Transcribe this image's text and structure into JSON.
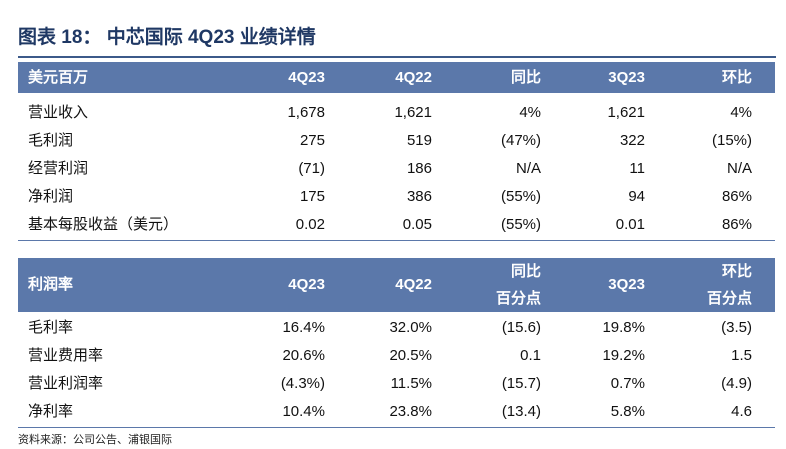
{
  "title": "图表 18： 中芯国际 4Q23 业绩详情",
  "tables": [
    {
      "header": [
        "美元百万",
        "4Q23",
        "4Q22",
        "同比",
        "3Q23",
        "环比"
      ],
      "rows": [
        [
          "营业收入",
          "1,678",
          "1,621",
          "4%",
          "1,621",
          "4%"
        ],
        [
          "毛利润",
          "275",
          "519",
          "(47%)",
          "322",
          "(15%)"
        ],
        [
          "经营利润",
          "(71)",
          "186",
          "N/A",
          "11",
          "N/A"
        ],
        [
          "净利润",
          "175",
          "386",
          "(55%)",
          "94",
          "86%"
        ],
        [
          "基本每股收益（美元）",
          "0.02",
          "0.05",
          "(55%)",
          "0.01",
          "86%"
        ]
      ]
    },
    {
      "header": [
        "利润率",
        "4Q23",
        "4Q22",
        [
          "同比",
          "百分点"
        ],
        "3Q23",
        [
          "环比",
          "百分点"
        ]
      ],
      "rows": [
        [
          "毛利率",
          "16.4%",
          "32.0%",
          "(15.6)",
          "19.8%",
          "(3.5)"
        ],
        [
          "营业费用率",
          "20.6%",
          "20.5%",
          "0.1",
          "19.2%",
          "1.5"
        ],
        [
          "营业利润率",
          "(4.3%)",
          "11.5%",
          "(15.7)",
          "0.7%",
          "(4.9)"
        ],
        [
          "净利率",
          "10.4%",
          "23.8%",
          "(13.4)",
          "5.8%",
          "4.6"
        ]
      ]
    }
  ],
  "source": "资料来源：公司公告、浦银国际"
}
